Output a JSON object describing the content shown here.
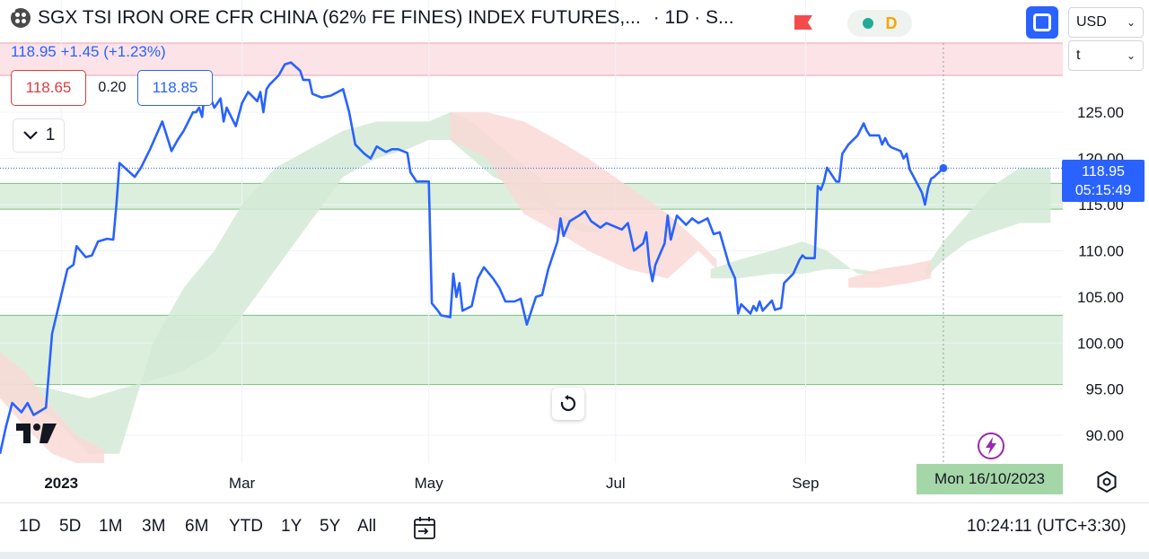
{
  "header": {
    "title": "SGX TSI IRON ORE CFR CHINA (62% FE FINES) INDEX FUTURES,...",
    "interval_exchange": "· 1D · S...",
    "session_letter": "D"
  },
  "currency_select": {
    "value": "USD"
  },
  "unit_select": {
    "value": "t"
  },
  "quote": {
    "price_change": "118.95 +1.45 (+1.23%)",
    "bid": "118.65",
    "spread": "0.20",
    "ask": "118.85"
  },
  "indicator_toggle": {
    "count": "1"
  },
  "price_tag": {
    "price": "118.95",
    "countdown": "05:15:49"
  },
  "crosshair_date": "Mon 16/10/2023",
  "bottom_bar": {
    "ranges": [
      "1D",
      "5D",
      "1M",
      "3M",
      "6M",
      "YTD",
      "1Y",
      "5Y",
      "All"
    ],
    "clock": "10:24:11 (UTC+3:30)"
  },
  "colors": {
    "line": "#2962ff",
    "cloud_green": "#d4ead6",
    "cloud_red": "#f9d9d6",
    "zone_green": "#c8e6c9",
    "zone_pink": "#fbd9e0",
    "accent_blue": "#2962ff"
  },
  "chart_data": {
    "type": "line",
    "series": [
      {
        "values": [
          [
            "2022-12-12",
            88
          ],
          [
            "2022-12-14",
            91
          ],
          [
            "2022-12-16",
            93.5
          ],
          [
            "2022-12-19",
            92.5
          ],
          [
            "2022-12-21",
            93.5
          ],
          [
            "2022-12-23",
            92.2
          ],
          [
            "2022-12-27",
            93
          ],
          [
            "2022-12-29",
            101
          ],
          [
            "2023-01-03",
            108
          ],
          [
            "2023-01-05",
            108.5
          ],
          [
            "2023-01-06",
            110.5
          ],
          [
            "2023-01-09",
            109.3
          ],
          [
            "2023-01-11",
            109.5
          ],
          [
            "2023-01-13",
            111
          ],
          [
            "2023-01-16",
            111.3
          ],
          [
            "2023-01-18",
            111.2
          ],
          [
            "2023-01-19",
            115
          ],
          [
            "2023-01-20",
            119.5
          ],
          [
            "2023-01-25",
            118
          ],
          [
            "2023-01-27",
            119
          ],
          [
            "2023-01-30",
            121
          ],
          [
            "2023-02-01",
            122.5
          ],
          [
            "2023-02-03",
            124
          ],
          [
            "2023-02-06",
            120.8
          ],
          [
            "2023-02-08",
            122
          ],
          [
            "2023-02-10",
            123
          ],
          [
            "2023-02-13",
            125
          ],
          [
            "2023-02-14",
            125
          ],
          [
            "2023-02-15",
            125.5
          ],
          [
            "2023-02-16",
            124.5
          ],
          [
            "2023-02-17",
            128
          ],
          [
            "2023-02-20",
            125.5
          ],
          [
            "2023-02-22",
            126.5
          ],
          [
            "2023-02-23",
            124
          ],
          [
            "2023-02-24",
            125.5
          ],
          [
            "2023-02-27",
            123.5
          ],
          [
            "2023-03-01",
            126
          ],
          [
            "2023-03-03",
            127.2
          ],
          [
            "2023-03-06",
            126.2
          ],
          [
            "2023-03-07",
            127.2
          ],
          [
            "2023-03-08",
            125
          ],
          [
            "2023-03-09",
            127.5
          ],
          [
            "2023-03-10",
            128
          ],
          [
            "2023-03-13",
            129
          ],
          [
            "2023-03-15",
            130.2
          ],
          [
            "2023-03-17",
            130.4
          ],
          [
            "2023-03-20",
            129.5
          ],
          [
            "2023-03-21",
            128.5
          ],
          [
            "2023-03-23",
            128.5
          ],
          [
            "2023-03-24",
            127
          ],
          [
            "2023-03-27",
            126.6
          ],
          [
            "2023-03-30",
            126.8
          ],
          [
            "2023-04-03",
            127.5
          ],
          [
            "2023-04-05",
            125
          ],
          [
            "2023-04-07",
            121.5
          ],
          [
            "2023-04-10",
            120.5
          ],
          [
            "2023-04-12",
            120
          ],
          [
            "2023-04-14",
            121.3
          ],
          [
            "2023-04-17",
            120.7
          ],
          [
            "2023-04-19",
            121
          ],
          [
            "2023-04-21",
            121
          ],
          [
            "2023-04-24",
            120.6
          ],
          [
            "2023-04-25",
            118.5
          ],
          [
            "2023-04-27",
            117.5
          ],
          [
            "2023-05-01",
            117.5
          ],
          [
            "2023-05-02",
            104.3
          ],
          [
            "2023-05-04",
            103.5
          ],
          [
            "2023-05-05",
            103
          ],
          [
            "2023-05-08",
            102.8
          ],
          [
            "2023-05-09",
            107.5
          ],
          [
            "2023-05-10",
            105
          ],
          [
            "2023-05-11",
            106.5
          ],
          [
            "2023-05-12",
            103.5
          ],
          [
            "2023-05-15",
            104
          ],
          [
            "2023-05-17",
            107
          ],
          [
            "2023-05-19",
            108.2
          ],
          [
            "2023-05-22",
            107
          ],
          [
            "2023-05-24",
            106
          ],
          [
            "2023-05-26",
            104.5
          ],
          [
            "2023-05-29",
            104.5
          ],
          [
            "2023-05-31",
            104.8
          ],
          [
            "2023-06-02",
            102
          ],
          [
            "2023-06-05",
            105
          ],
          [
            "2023-06-07",
            105.2
          ],
          [
            "2023-06-09",
            108
          ],
          [
            "2023-06-12",
            111
          ],
          [
            "2023-06-13",
            113.5
          ],
          [
            "2023-06-14",
            111.6
          ],
          [
            "2023-06-16",
            113.2
          ],
          [
            "2023-06-19",
            113.8
          ],
          [
            "2023-06-21",
            114.3
          ],
          [
            "2023-06-23",
            113.2
          ],
          [
            "2023-06-26",
            112.5
          ],
          [
            "2023-06-28",
            113
          ],
          [
            "2023-07-03",
            112.3
          ],
          [
            "2023-07-05",
            113
          ],
          [
            "2023-07-07",
            110
          ],
          [
            "2023-07-10",
            110.8
          ],
          [
            "2023-07-11",
            112
          ],
          [
            "2023-07-12",
            108.5
          ],
          [
            "2023-07-13",
            106.7
          ],
          [
            "2023-07-14",
            108.5
          ],
          [
            "2023-07-17",
            110.8
          ],
          [
            "2023-07-18",
            113.8
          ],
          [
            "2023-07-19",
            111.2
          ],
          [
            "2023-07-21",
            113.8
          ],
          [
            "2023-07-24",
            112.8
          ],
          [
            "2023-07-26",
            113.5
          ],
          [
            "2023-07-28",
            113
          ],
          [
            "2023-07-31",
            113.5
          ],
          [
            "2023-08-02",
            111.8
          ],
          [
            "2023-08-04",
            112
          ],
          [
            "2023-08-07",
            108.5
          ],
          [
            "2023-08-09",
            107
          ],
          [
            "2023-08-10",
            103.2
          ],
          [
            "2023-08-11",
            104.2
          ],
          [
            "2023-08-14",
            103.2
          ],
          [
            "2023-08-15",
            104
          ],
          [
            "2023-08-16",
            103.5
          ],
          [
            "2023-08-17",
            104.5
          ],
          [
            "2023-08-18",
            103.5
          ],
          [
            "2023-08-21",
            104.6
          ],
          [
            "2023-08-22",
            103.6
          ],
          [
            "2023-08-24",
            103.8
          ],
          [
            "2023-08-25",
            106.5
          ],
          [
            "2023-08-28",
            107.5
          ],
          [
            "2023-08-30",
            109
          ],
          [
            "2023-08-31",
            109.5
          ],
          [
            "2023-09-01",
            109.2
          ],
          [
            "2023-09-04",
            109.2
          ],
          [
            "2023-09-05",
            117
          ],
          [
            "2023-09-06",
            116.6
          ],
          [
            "2023-09-07",
            117.5
          ],
          [
            "2023-09-08",
            119
          ],
          [
            "2023-09-11",
            117.5
          ],
          [
            "2023-09-12",
            117.5
          ],
          [
            "2023-09-13",
            120.5
          ],
          [
            "2023-09-14",
            121
          ],
          [
            "2023-09-15",
            121.5
          ],
          [
            "2023-09-18",
            122.5
          ],
          [
            "2023-09-20",
            123.8
          ],
          [
            "2023-09-21",
            123
          ],
          [
            "2023-09-22",
            122.5
          ],
          [
            "2023-09-25",
            122.5
          ],
          [
            "2023-09-26",
            121.5
          ],
          [
            "2023-09-27",
            122.2
          ],
          [
            "2023-09-28",
            121.5
          ],
          [
            "2023-09-29",
            121.2
          ],
          [
            "2023-10-02",
            120.8
          ],
          [
            "2023-10-03",
            120
          ],
          [
            "2023-10-04",
            120.5
          ],
          [
            "2023-10-05",
            118.8
          ],
          [
            "2023-10-06",
            118.2
          ],
          [
            "2023-10-09",
            116.3
          ],
          [
            "2023-10-10",
            115
          ],
          [
            "2023-10-11",
            116.8
          ],
          [
            "2023-10-12",
            117.8
          ],
          [
            "2023-10-13",
            118
          ],
          [
            "2023-10-16",
            118.95
          ]
        ]
      }
    ],
    "cloud_green": [
      [
        [
          "2022-12-12",
          94
        ],
        [
          "2022-12-29",
          92
        ],
        [
          "2023-01-10",
          88
        ],
        [
          "2023-01-20",
          88
        ],
        [
          "2023-01-31",
          100
        ],
        [
          "2023-02-10",
          106
        ],
        [
          "2023-02-20",
          110
        ],
        [
          "2023-03-01",
          115
        ],
        [
          "2023-03-12",
          119
        ],
        [
          "2023-03-23",
          121
        ],
        [
          "2023-04-03",
          123
        ],
        [
          "2023-04-14",
          124
        ],
        [
          "2023-04-24",
          124
        ],
        [
          "2023-05-01",
          124
        ],
        [
          "2023-05-08",
          125
        ],
        [
          "2023-05-15",
          124
        ],
        [
          "2023-05-22",
          122
        ],
        [
          "2023-05-29",
          120
        ],
        [
          "2023-06-06",
          118
        ],
        [
          "2023-06-13",
          114
        ],
        [
          "2023-06-20",
          113
        ],
        [
          "2023-06-27",
          112
        ],
        [
          "2023-06-20",
          112
        ],
        [
          "2023-06-13",
          113
        ],
        [
          "2023-06-06",
          115
        ],
        [
          "2023-05-29",
          117
        ],
        [
          "2023-05-22",
          118
        ],
        [
          "2023-05-15",
          120
        ],
        [
          "2023-05-08",
          122
        ],
        [
          "2023-05-01",
          122
        ],
        [
          "2023-04-24",
          121
        ],
        [
          "2023-04-14",
          120
        ],
        [
          "2023-04-03",
          118
        ],
        [
          "2023-03-23",
          113
        ],
        [
          "2023-03-12",
          108
        ],
        [
          "2023-03-01",
          103
        ],
        [
          "2023-02-20",
          99
        ],
        [
          "2023-02-10",
          97
        ],
        [
          "2023-01-31",
          96
        ],
        [
          "2023-01-20",
          95
        ],
        [
          "2023-01-10",
          94
        ],
        [
          "2022-12-29",
          95
        ],
        [
          "2022-12-12",
          96
        ]
      ],
      [
        [
          "2023-08-01",
          108
        ],
        [
          "2023-08-10",
          109
        ],
        [
          "2023-08-21",
          110
        ],
        [
          "2023-08-31",
          111
        ],
        [
          "2023-09-08",
          110
        ],
        [
          "2023-09-18",
          107.5
        ],
        [
          "2023-09-28",
          107.5
        ],
        [
          "2023-09-18",
          108
        ],
        [
          "2023-09-08",
          108
        ],
        [
          "2023-08-31",
          107.5
        ],
        [
          "2023-08-21",
          107.5
        ],
        [
          "2023-08-10",
          107
        ],
        [
          "2023-08-01",
          107
        ]
      ],
      [
        [
          "2023-10-10",
          108
        ],
        [
          "2023-10-16",
          111
        ],
        [
          "2023-10-24",
          114
        ],
        [
          "2023-11-01",
          117
        ],
        [
          "2023-11-10",
          119
        ],
        [
          "2023-11-20",
          119
        ],
        [
          "2023-11-20",
          113
        ],
        [
          "2023-11-10",
          113
        ],
        [
          "2023-11-01",
          112
        ],
        [
          "2023-10-24",
          111
        ],
        [
          "2023-10-16",
          109
        ],
        [
          "2023-10-10",
          107
        ]
      ]
    ],
    "cloud_red": [
      [
        [
          "2022-12-12",
          99
        ],
        [
          "2022-12-20",
          97
        ],
        [
          "2022-12-29",
          93
        ],
        [
          "2023-01-06",
          90
        ],
        [
          "2023-01-15",
          88.5
        ],
        [
          "2023-01-15",
          87
        ],
        [
          "2023-01-06",
          87
        ],
        [
          "2022-12-29",
          88
        ],
        [
          "2022-12-20",
          91
        ],
        [
          "2022-12-12",
          94
        ]
      ],
      [
        [
          "2023-05-08",
          125
        ],
        [
          "2023-05-20",
          125
        ],
        [
          "2023-06-01",
          124
        ],
        [
          "2023-06-12",
          122
        ],
        [
          "2023-06-22",
          120
        ],
        [
          "2023-07-05",
          117
        ],
        [
          "2023-07-18",
          114
        ],
        [
          "2023-07-28",
          111
        ],
        [
          "2023-08-03",
          109
        ],
        [
          "2023-08-03",
          108
        ],
        [
          "2023-07-28",
          110
        ],
        [
          "2023-07-18",
          107
        ],
        [
          "2023-07-05",
          108
        ],
        [
          "2023-06-22",
          110
        ],
        [
          "2023-06-12",
          112
        ],
        [
          "2023-06-01",
          114
        ],
        [
          "2023-05-20",
          120
        ],
        [
          "2023-05-08",
          122
        ]
      ],
      [
        [
          "2023-09-15",
          107
        ],
        [
          "2023-09-25",
          108
        ],
        [
          "2023-10-05",
          108.5
        ],
        [
          "2023-10-12",
          109
        ],
        [
          "2023-10-12",
          107
        ],
        [
          "2023-10-05",
          106.5
        ],
        [
          "2023-09-25",
          106
        ],
        [
          "2023-09-15",
          106
        ]
      ]
    ],
    "zones": [
      {
        "color": "zone_green",
        "from": 95.5,
        "to": 103
      },
      {
        "color": "zone_green",
        "from": 114.5,
        "to": 117.3
      },
      {
        "color": "zone_pink",
        "from": 129,
        "to": 132.5
      }
    ],
    "last_price_line": 118.95,
    "x_ticks": [
      {
        "date": "2023-01-01",
        "label": "2023",
        "bold": true
      },
      {
        "date": "2023-03-01",
        "label": "Mar"
      },
      {
        "date": "2023-05-01",
        "label": "May"
      },
      {
        "date": "2023-07-01",
        "label": "Jul"
      },
      {
        "date": "2023-09-01",
        "label": "Sep"
      }
    ],
    "y_ticks": [
      90,
      95,
      100,
      105,
      110,
      115,
      120,
      125
    ],
    "x_range": [
      "2022-12-12",
      "2023-11-24"
    ],
    "y_range": [
      87,
      132.5
    ],
    "crosshair_x": "2023-10-16",
    "grid": true
  }
}
